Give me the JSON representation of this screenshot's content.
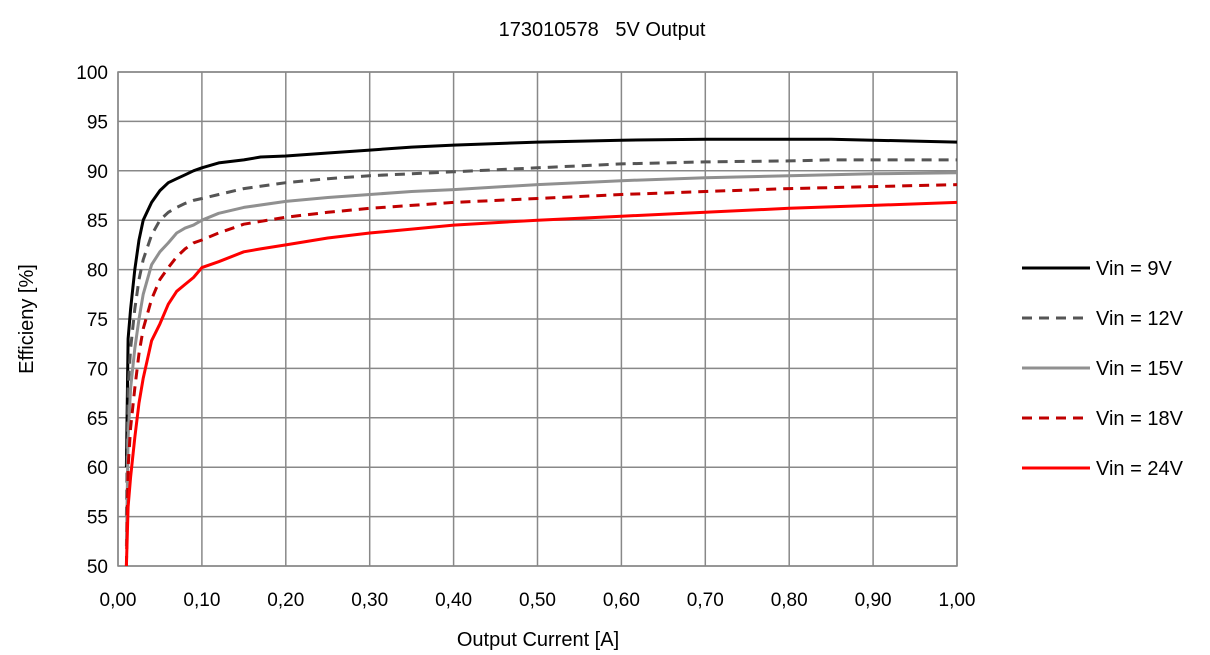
{
  "chart_data": {
    "type": "line",
    "title": "173010578   5V Output",
    "xlabel": "Output Current [A]",
    "ylabel": "Efficieny [%]",
    "xlim": [
      0,
      1
    ],
    "ylim": [
      50,
      100
    ],
    "x_ticks": [
      0,
      0.1,
      0.2,
      0.3,
      0.4,
      0.5,
      0.6,
      0.7,
      0.8,
      0.9,
      1.0
    ],
    "x_tick_labels": [
      "0,00",
      "0,10",
      "0,20",
      "0,30",
      "0,40",
      "0,50",
      "0,60",
      "0,70",
      "0,80",
      "0,90",
      "1,00"
    ],
    "y_ticks": [
      50,
      55,
      60,
      65,
      70,
      75,
      80,
      85,
      90,
      95,
      100
    ],
    "y_tick_labels": [
      "50",
      "55",
      "60",
      "65",
      "70",
      "75",
      "80",
      "85",
      "90",
      "95",
      "100"
    ],
    "grid": true,
    "legend_position": "right",
    "series": [
      {
        "name": "Vin = 9V",
        "color": "#000000",
        "dash": "solid",
        "x": [
          0.01,
          0.012,
          0.015,
          0.02,
          0.025,
          0.03,
          0.04,
          0.05,
          0.06,
          0.07,
          0.08,
          0.09,
          0.1,
          0.12,
          0.15,
          0.17,
          0.2,
          0.25,
          0.3,
          0.35,
          0.4,
          0.5,
          0.6,
          0.7,
          0.8,
          0.85,
          0.9,
          1.0
        ],
        "y": [
          60,
          73,
          76,
          80,
          83,
          85,
          86.8,
          88,
          88.8,
          89.2,
          89.6,
          90,
          90.3,
          90.8,
          91.1,
          91.4,
          91.5,
          91.8,
          92.1,
          92.4,
          92.6,
          92.9,
          93.1,
          93.2,
          93.2,
          93.2,
          93.1,
          92.9
        ]
      },
      {
        "name": "Vin = 12V",
        "color": "#555555",
        "dash": "dashed",
        "x": [
          0.01,
          0.012,
          0.015,
          0.02,
          0.025,
          0.03,
          0.04,
          0.05,
          0.06,
          0.07,
          0.08,
          0.09,
          0.1,
          0.12,
          0.15,
          0.2,
          0.25,
          0.3,
          0.35,
          0.4,
          0.5,
          0.6,
          0.7,
          0.8,
          0.85,
          0.9,
          1.0
        ],
        "y": [
          55,
          68,
          72,
          76,
          79,
          81,
          83.5,
          85,
          85.8,
          86.3,
          86.7,
          87,
          87.2,
          87.6,
          88.2,
          88.8,
          89.2,
          89.5,
          89.7,
          89.9,
          90.3,
          90.7,
          90.9,
          91,
          91.1,
          91.1,
          91.1
        ]
      },
      {
        "name": "Vin = 15V",
        "color": "#909090",
        "dash": "solid",
        "x": [
          0.01,
          0.012,
          0.015,
          0.02,
          0.025,
          0.03,
          0.04,
          0.05,
          0.06,
          0.07,
          0.08,
          0.09,
          0.1,
          0.12,
          0.15,
          0.2,
          0.25,
          0.3,
          0.35,
          0.4,
          0.5,
          0.6,
          0.7,
          0.8,
          0.85,
          0.9,
          1.0
        ],
        "y": [
          52,
          63,
          68,
          72,
          75,
          77.5,
          80.5,
          81.8,
          82.7,
          83.7,
          84.2,
          84.5,
          85,
          85.7,
          86.3,
          86.9,
          87.3,
          87.6,
          87.9,
          88.1,
          88.6,
          89,
          89.3,
          89.5,
          89.6,
          89.7,
          89.8
        ]
      },
      {
        "name": "Vin = 18V",
        "color": "#c00000",
        "dash": "dashed",
        "x": [
          0.01,
          0.012,
          0.015,
          0.02,
          0.025,
          0.03,
          0.04,
          0.05,
          0.06,
          0.07,
          0.08,
          0.09,
          0.1,
          0.12,
          0.15,
          0.2,
          0.25,
          0.3,
          0.35,
          0.4,
          0.5,
          0.6,
          0.7,
          0.8,
          0.85,
          0.9,
          1.0
        ],
        "y": [
          50,
          60,
          64,
          68,
          71.5,
          74,
          77,
          79,
          80.2,
          81.3,
          82.1,
          82.7,
          83,
          83.7,
          84.6,
          85.3,
          85.8,
          86.2,
          86.5,
          86.8,
          87.2,
          87.6,
          87.9,
          88.2,
          88.3,
          88.4,
          88.6
        ]
      },
      {
        "name": "Vin = 24V",
        "color": "#ff0000",
        "dash": "solid",
        "x": [
          0.01,
          0.012,
          0.015,
          0.02,
          0.025,
          0.03,
          0.04,
          0.05,
          0.06,
          0.07,
          0.08,
          0.09,
          0.1,
          0.12,
          0.15,
          0.17,
          0.2,
          0.25,
          0.3,
          0.35,
          0.4,
          0.5,
          0.6,
          0.7,
          0.8,
          0.9,
          1.0
        ],
        "y": [
          50,
          56,
          59,
          63,
          66.5,
          69,
          72.8,
          74.5,
          76.5,
          77.8,
          78.5,
          79.2,
          80.2,
          80.8,
          81.8,
          82.1,
          82.5,
          83.2,
          83.7,
          84.1,
          84.5,
          85,
          85.4,
          85.8,
          86.2,
          86.5,
          86.8
        ]
      }
    ]
  }
}
